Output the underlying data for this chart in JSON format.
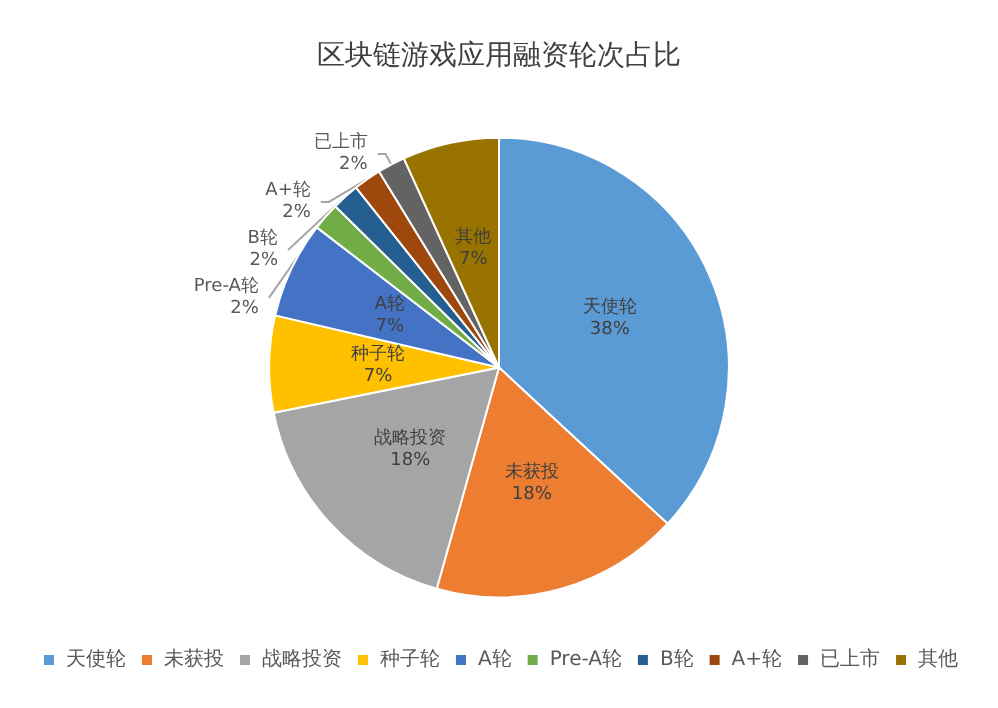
{
  "chart_data": {
    "type": "pie",
    "title": "区块链游戏应用融资轮次占比",
    "categories": [
      "天使轮",
      "未获投",
      "战略投资",
      "种子轮",
      "A轮",
      "Pre-A轮",
      "B轮",
      "A+轮",
      "已上市",
      "其他"
    ],
    "values": [
      38,
      18,
      18,
      7,
      7,
      2,
      2,
      2,
      2,
      7
    ],
    "value_labels": [
      "38%",
      "18%",
      "18%",
      "7%",
      "7%",
      "2%",
      "2%",
      "2%",
      "2%",
      "7%"
    ],
    "colors": [
      "#5b9bd5",
      "#ed7d31",
      "#a5a5a5",
      "#ffc000",
      "#4472c4",
      "#70ad47",
      "#255e91",
      "#9e480e",
      "#636363",
      "#997300"
    ],
    "legend": "bottom"
  }
}
